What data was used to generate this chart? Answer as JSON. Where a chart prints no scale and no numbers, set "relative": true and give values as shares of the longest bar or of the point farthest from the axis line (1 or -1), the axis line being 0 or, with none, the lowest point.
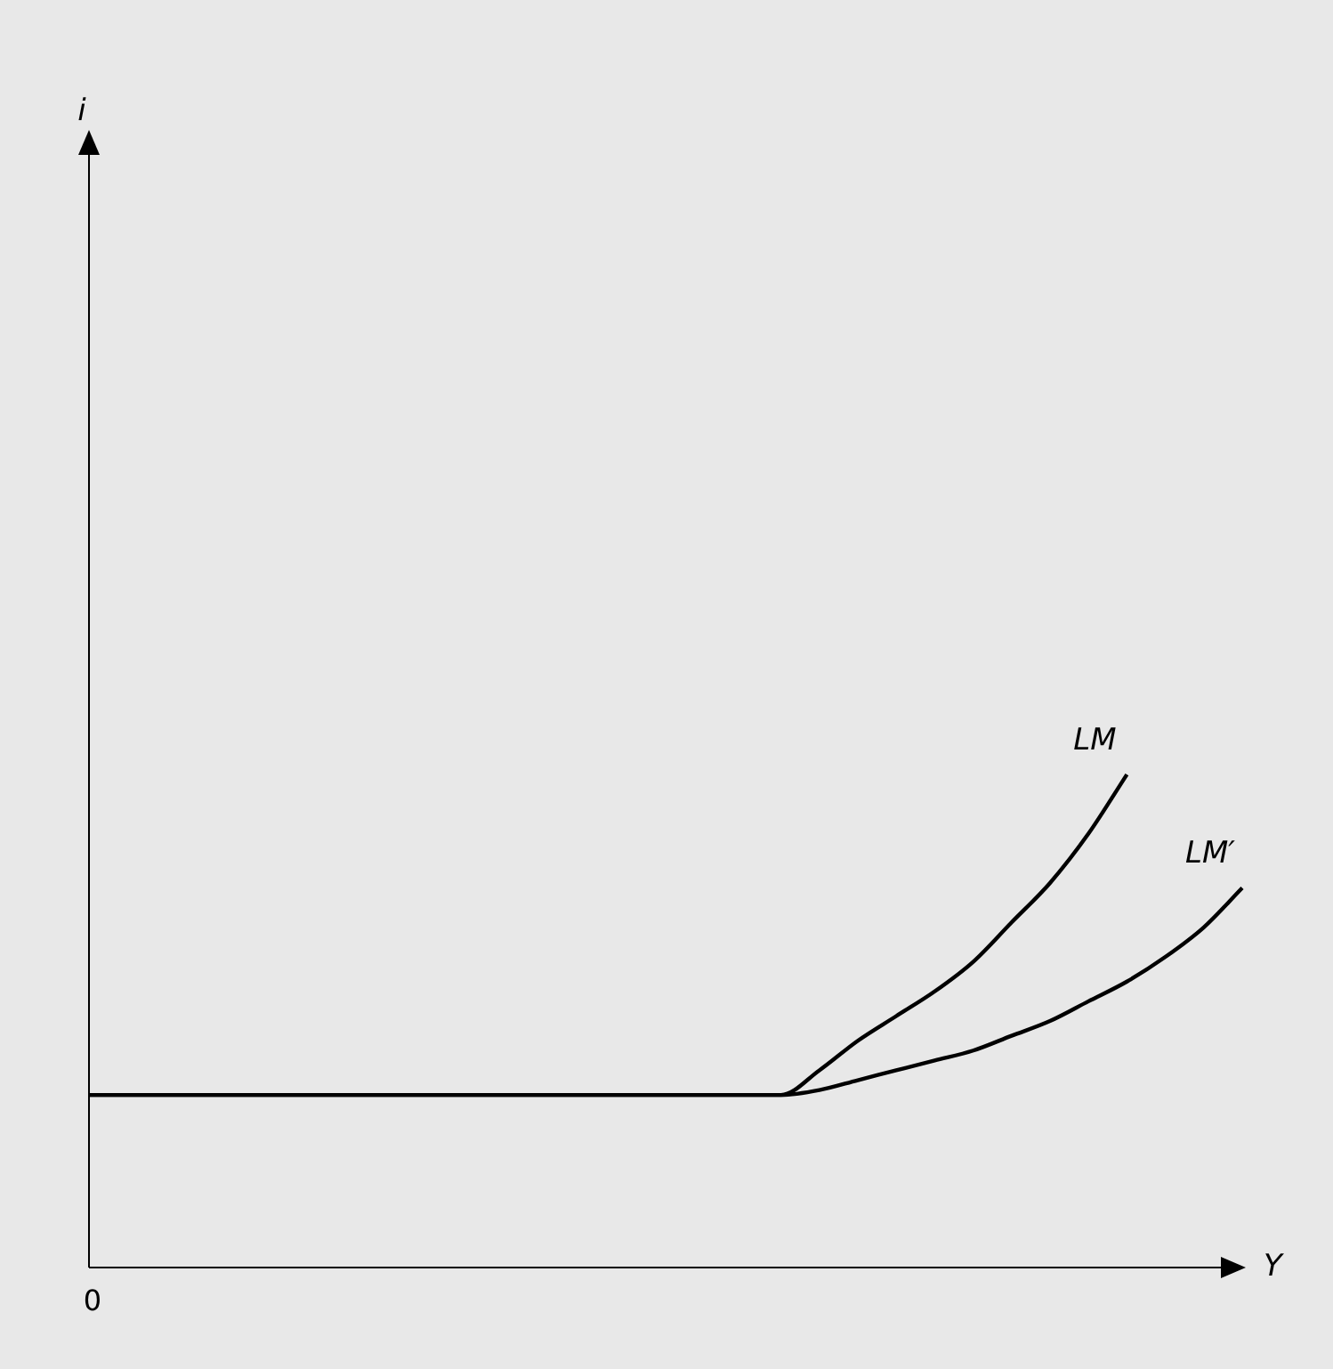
{
  "chart_data": {
    "type": "line",
    "relative": true,
    "xlabel": "Y",
    "annotations": [
      "i",
      "0"
    ],
    "legend": false,
    "marker": "none",
    "line_style": "solid",
    "categories": [
      null,
      null,
      null,
      null,
      null,
      null,
      null,
      null,
      null,
      null,
      null,
      null,
      null,
      null,
      null,
      null,
      null,
      null,
      null,
      null,
      null,
      null,
      null,
      null,
      null,
      null,
      null,
      null,
      null,
      null,
      null
    ],
    "series": [
      {
        "name": "LM",
        "color": "#000000",
        "values": [
          0.35,
          0.35,
          0.35,
          0.35,
          0.35,
          0.35,
          0.35,
          0.35,
          0.35,
          0.35,
          0.35,
          0.35,
          0.35,
          0.35,
          0.35,
          0.35,
          0.35,
          0.35,
          0.35,
          0.4,
          0.46,
          0.51,
          0.56,
          0.62,
          0.7,
          0.78,
          0.88,
          1,
          null,
          null,
          null
        ]
      },
      {
        "name": "LM′",
        "color": "#000000",
        "values": [
          0.35,
          0.35,
          0.35,
          0.35,
          0.35,
          0.35,
          0.35,
          0.35,
          0.35,
          0.35,
          0.35,
          0.35,
          0.35,
          0.35,
          0.35,
          0.35,
          0.35,
          0.35,
          0.35,
          0.36,
          0.38,
          0.4,
          0.42,
          0.44,
          0.47,
          0.5,
          0.54,
          0.58,
          0.63,
          0.69,
          0.77
        ]
      }
    ]
  }
}
